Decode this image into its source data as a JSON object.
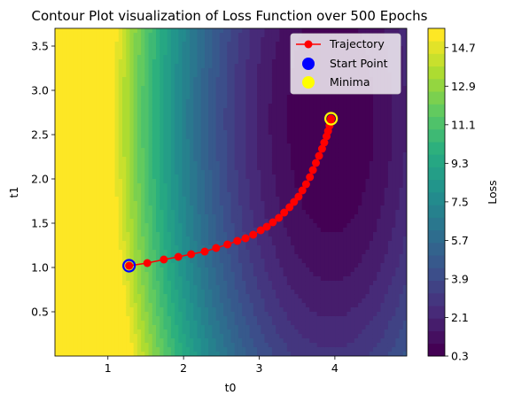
{
  "chart_data": {
    "type": "contour",
    "title": "Contour Plot visualization of Loss Function over 500 Epochs",
    "xlabel": "t0",
    "ylabel": "t1",
    "xlim": [
      0.3,
      4.95
    ],
    "ylim": [
      0.0,
      3.7
    ],
    "xticks": [
      1,
      2,
      3,
      4
    ],
    "yticks": [
      0.5,
      1.0,
      1.5,
      2.0,
      2.5,
      3.0,
      3.5
    ],
    "xtick_labels": [
      "1",
      "2",
      "3",
      "4"
    ],
    "ytick_labels": [
      "0.5",
      "1.0",
      "1.5",
      "2.0",
      "2.5",
      "3.0",
      "3.5"
    ],
    "colorbar": {
      "label": "Loss",
      "range": [
        0.3,
        15.6
      ],
      "ticks": [
        0.3,
        2.1,
        3.9,
        5.7,
        7.5,
        9.3,
        11.1,
        12.9,
        14.7
      ],
      "tick_labels": [
        "0.3",
        "2.1",
        "3.9",
        "5.7",
        "7.5",
        "9.3",
        "11.1",
        "12.9",
        "14.7"
      ],
      "colormap": "viridis"
    },
    "loss_minimum": {
      "t0": 3.95,
      "t1": 2.68,
      "loss": 0.3
    },
    "trajectory": {
      "name": "Trajectory",
      "color": "#ff0000",
      "points": [
        [
          1.28,
          1.02
        ],
        [
          1.52,
          1.05
        ],
        [
          1.74,
          1.09
        ],
        [
          1.93,
          1.12
        ],
        [
          2.1,
          1.15
        ],
        [
          2.28,
          1.18
        ],
        [
          2.43,
          1.22
        ],
        [
          2.58,
          1.26
        ],
        [
          2.71,
          1.3
        ],
        [
          2.82,
          1.33
        ],
        [
          2.92,
          1.37
        ],
        [
          3.02,
          1.42
        ],
        [
          3.1,
          1.46
        ],
        [
          3.18,
          1.51
        ],
        [
          3.26,
          1.56
        ],
        [
          3.33,
          1.62
        ],
        [
          3.4,
          1.68
        ],
        [
          3.46,
          1.74
        ],
        [
          3.52,
          1.8
        ],
        [
          3.57,
          1.87
        ],
        [
          3.62,
          1.94
        ],
        [
          3.67,
          2.02
        ],
        [
          3.71,
          2.1
        ],
        [
          3.75,
          2.18
        ],
        [
          3.79,
          2.26
        ],
        [
          3.83,
          2.34
        ],
        [
          3.86,
          2.41
        ],
        [
          3.89,
          2.48
        ],
        [
          3.91,
          2.54
        ],
        [
          3.93,
          2.6
        ],
        [
          3.94,
          2.64
        ],
        [
          3.95,
          2.68
        ]
      ]
    },
    "start_point": {
      "name": "Start Point",
      "t0": 1.28,
      "t1": 1.02,
      "color": "#0000ff"
    },
    "minima": {
      "name": "Minima",
      "t0": 3.95,
      "t1": 2.68,
      "color": "#ffff00"
    },
    "legend": {
      "position": "top-right",
      "entries": [
        "Trajectory",
        "Start Point",
        "Minima"
      ]
    }
  }
}
